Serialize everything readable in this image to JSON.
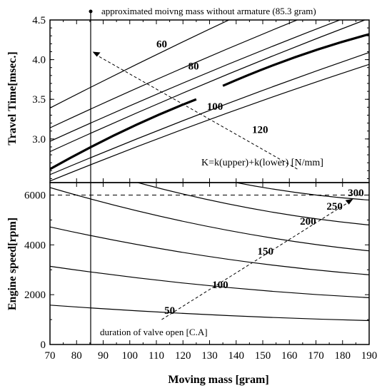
{
  "chart_data": [
    {
      "type": "line",
      "ylabel": "Travel Time[msec.]",
      "ylim": [
        2.45,
        4.5
      ],
      "yticks": [
        "4.5",
        "4.0",
        "3.5",
        "3.0"
      ],
      "legend_text": "K=k(upper)+k(lower) [N/mm]",
      "top_annotation": "approximated moivng mass without armature (85.3 gram)",
      "marker_x": 85.3,
      "curve_labels": [
        {
          "text": "60",
          "x": 112,
          "y": 4.2
        },
        {
          "text": "80",
          "x": 124,
          "y": 3.92
        },
        {
          "text": "100",
          "x": 132,
          "y": 3.41
        },
        {
          "text": "120",
          "x": 149,
          "y": 3.12
        }
      ],
      "series": [
        {
          "name": "",
          "x": [
            70,
            190
          ],
          "y": [
            3.39,
            5.3
          ]
        },
        {
          "name": "",
          "x": [
            70,
            190
          ],
          "y": [
            3.14,
            4.86
          ]
        },
        {
          "name": "",
          "x": [
            70,
            190
          ],
          "y": [
            2.97,
            4.64
          ]
        },
        {
          "name": "",
          "x": [
            70,
            190
          ],
          "y": [
            2.84,
            4.52
          ]
        },
        {
          "name": "",
          "x": [
            70,
            125
          ],
          "y": [
            2.62,
            3.5
          ],
          "bold": true
        },
        {
          "name": "",
          "x": [
            135,
            190
          ],
          "y": [
            3.67,
            4.32
          ],
          "bold": true
        },
        {
          "name": "",
          "x": [
            70,
            190
          ],
          "y": [
            2.55,
            4.09
          ]
        },
        {
          "name": "",
          "x": [
            70,
            190
          ],
          "y": [
            2.47,
            3.94
          ]
        }
      ]
    },
    {
      "type": "line",
      "xlabel": "Moving mass [gram]",
      "ylabel": "Engine speed[rpm]",
      "xlim": [
        70,
        190
      ],
      "ylim": [
        0,
        6500
      ],
      "xticks": [
        "70",
        "80",
        "90",
        "100",
        "110",
        "120",
        "130",
        "140",
        "150",
        "160",
        "170",
        "180",
        "190"
      ],
      "yticks": [
        "6000",
        "4000",
        "2000",
        "0"
      ],
      "dashed_line_y": 6000,
      "arrow_text": "duration of valve open [C.A]",
      "series": [
        {
          "name": "50",
          "x": [
            70,
            190
          ],
          "y": [
            1580,
            960
          ],
          "label_x": 115,
          "label_y": 1380
        },
        {
          "name": "100",
          "x": [
            70,
            190
          ],
          "y": [
            3140,
            1880
          ],
          "label_x": 134,
          "label_y": 2400
        },
        {
          "name": "150",
          "x": [
            70,
            190
          ],
          "y": [
            4720,
            2800
          ],
          "label_x": 151,
          "label_y": 3750
        },
        {
          "name": "200",
          "x": [
            70,
            190
          ],
          "y": [
            6300,
            3760
          ],
          "label_x": 167,
          "label_y": 4950
        },
        {
          "name": "250",
          "x": [
            103,
            190
          ],
          "y": [
            6500,
            4800
          ],
          "label_x": 177,
          "label_y": 5550
        },
        {
          "name": "300",
          "x": [
            140,
            190
          ],
          "y": [
            6500,
            5800
          ],
          "label_x": 185,
          "label_y": 6100
        }
      ]
    }
  ]
}
